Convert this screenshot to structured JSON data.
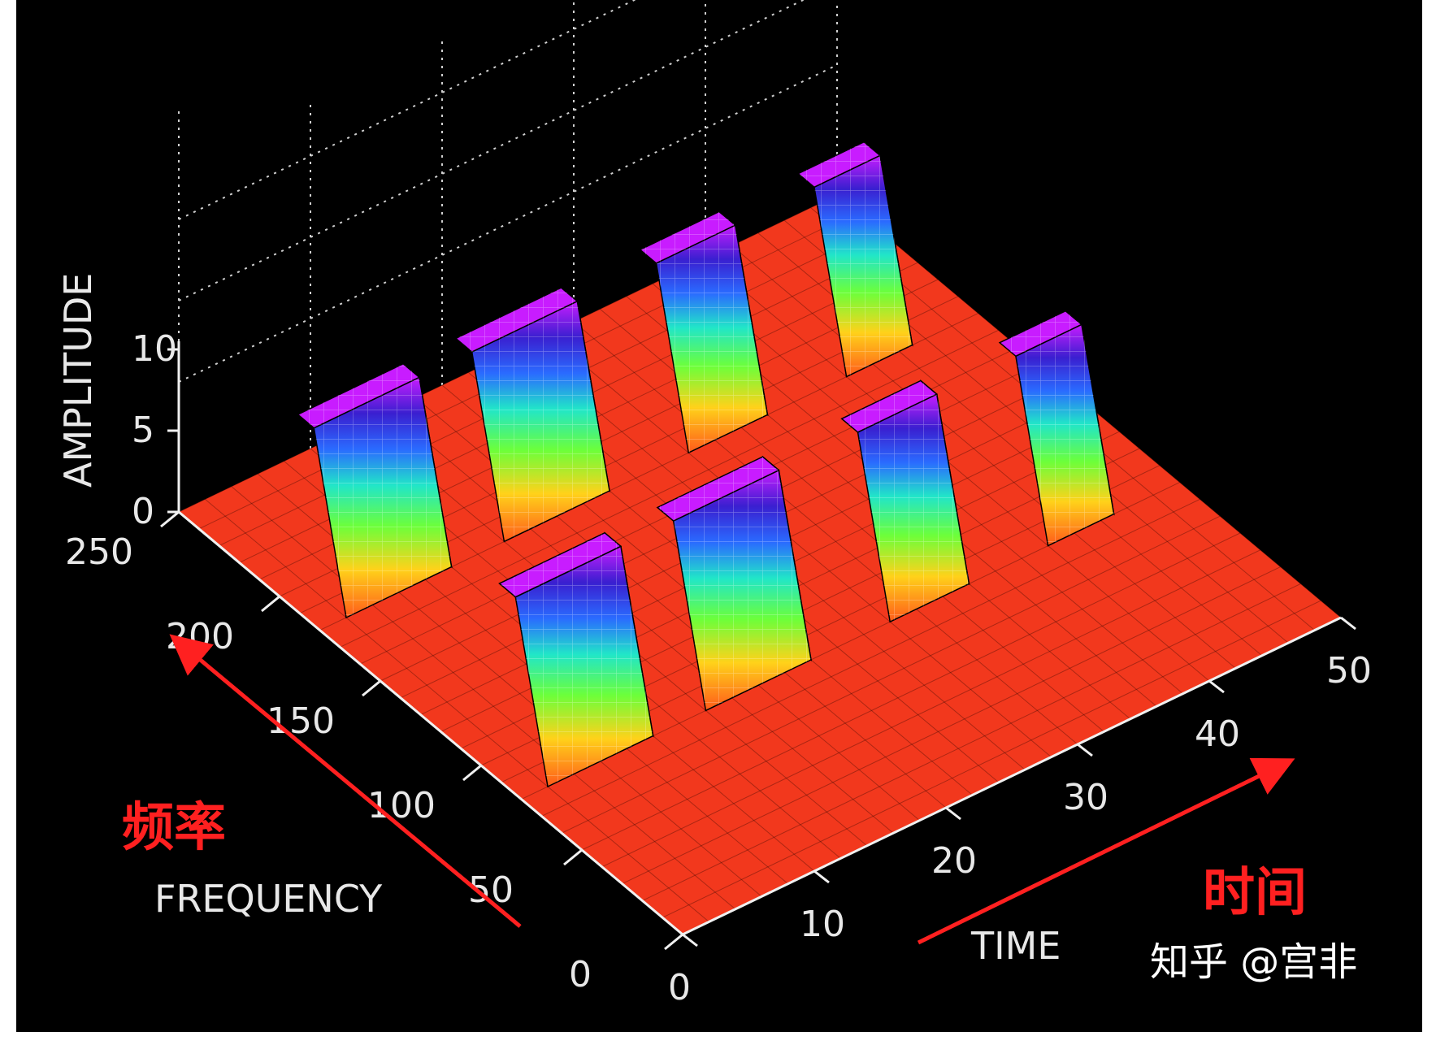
{
  "chart_data": {
    "type": "surface",
    "axis_titles": {
      "z": "AMPLITUDE",
      "y": "FREQUENCY",
      "x": "TIME"
    },
    "z_ticks": [
      "0",
      "5",
      "10"
    ],
    "y_ticks": [
      "0",
      "50",
      "100",
      "150",
      "200",
      "250"
    ],
    "x_ticks": [
      "0",
      "10",
      "20",
      "30",
      "40",
      "50"
    ],
    "x_range": [
      0,
      50
    ],
    "y_range": [
      0,
      250
    ],
    "z_range": [
      0,
      10
    ],
    "components": [
      {
        "frequency": 100,
        "time_start": 2,
        "time_end": 10,
        "amplitude": 10
      },
      {
        "frequency": 100,
        "time_start": 14,
        "time_end": 22,
        "amplitude": 10
      },
      {
        "frequency": 100,
        "time_start": 28,
        "time_end": 34,
        "amplitude": 10
      },
      {
        "frequency": 100,
        "time_start": 40,
        "time_end": 45,
        "amplitude": 10
      },
      {
        "frequency": 200,
        "time_start": 2,
        "time_end": 10,
        "amplitude": 10
      },
      {
        "frequency": 200,
        "time_start": 14,
        "time_end": 22,
        "amplitude": 10
      },
      {
        "frequency": 200,
        "time_start": 28,
        "time_end": 34,
        "amplitude": 10
      },
      {
        "frequency": 200,
        "time_start": 40,
        "time_end": 45,
        "amplitude": 10
      }
    ],
    "grid": true,
    "colors": {
      "background": "#000000",
      "base": "#ff3b1f",
      "annotation": "#ff2020"
    }
  },
  "annotations": {
    "frequency": "频率",
    "time": "时间"
  },
  "watermark": "知乎 @宫非"
}
